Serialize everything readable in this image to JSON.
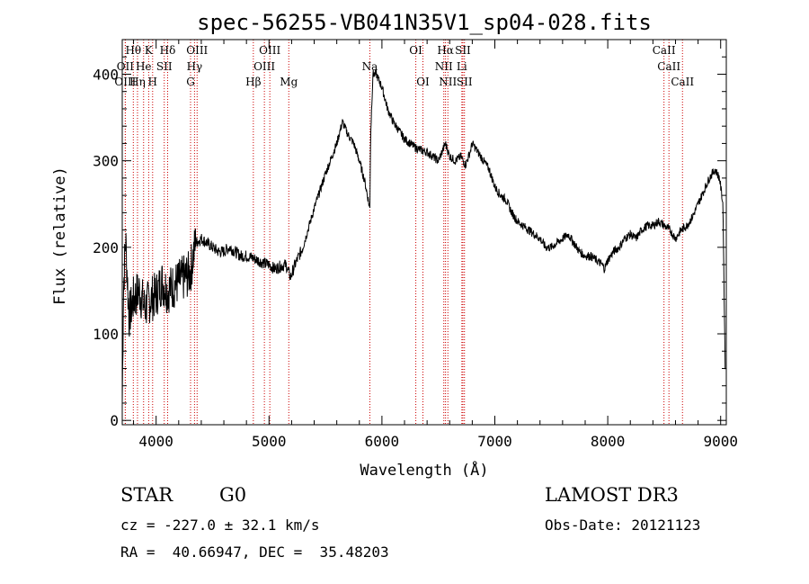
{
  "chart_data": {
    "type": "line",
    "title": "spec-56255-VB041N35V1_sp04-028.fits",
    "xlabel": "Wavelength (Å)",
    "ylabel": "Flux (relative)",
    "xlim": [
      3700,
      9050
    ],
    "ylim": [
      -5,
      440
    ],
    "xticks": [
      4000,
      5000,
      6000,
      7000,
      8000,
      9000
    ],
    "yticks": [
      0,
      100,
      200,
      300,
      400
    ],
    "series": [
      {
        "name": "spectrum",
        "x": [
          3700,
          3710,
          3730,
          3760,
          3800,
          3850,
          3900,
          3950,
          4000,
          4050,
          4100,
          4150,
          4200,
          4250,
          4300,
          4350,
          4400,
          4450,
          4500,
          4550,
          4600,
          4650,
          4700,
          4750,
          4800,
          4850,
          4900,
          4950,
          5000,
          5050,
          5100,
          5150,
          5190,
          5230,
          5300,
          5400,
          5500,
          5600,
          5650,
          5700,
          5750,
          5800,
          5850,
          5893,
          5900,
          5920,
          5950,
          6000,
          6050,
          6100,
          6150,
          6200,
          6250,
          6300,
          6350,
          6400,
          6450,
          6500,
          6563,
          6600,
          6650,
          6700,
          6740,
          6780,
          6800,
          6850,
          6900,
          6950,
          7000,
          7050,
          7100,
          7150,
          7200,
          7250,
          7300,
          7350,
          7400,
          7450,
          7500,
          7550,
          7600,
          7650,
          7700,
          7750,
          7800,
          7850,
          7900,
          7950,
          7970,
          8000,
          8050,
          8100,
          8150,
          8200,
          8250,
          8300,
          8350,
          8400,
          8450,
          8500,
          8550,
          8600,
          8650,
          8700,
          8750,
          8800,
          8850,
          8900,
          8950,
          8990,
          9020,
          9040
        ],
        "values": [
          20,
          150,
          210,
          120,
          140,
          150,
          130,
          140,
          145,
          160,
          150,
          155,
          160,
          165,
          170,
          205,
          210,
          205,
          200,
          195,
          195,
          200,
          195,
          190,
          190,
          188,
          185,
          182,
          180,
          175,
          178,
          180,
          165,
          180,
          200,
          245,
          285,
          320,
          345,
          330,
          320,
          300,
          275,
          245,
          330,
          400,
          400,
          385,
          360,
          345,
          335,
          325,
          320,
          315,
          312,
          310,
          305,
          300,
          320,
          305,
          300,
          305,
          295,
          310,
          320,
          310,
          300,
          290,
          270,
          260,
          255,
          240,
          230,
          225,
          220,
          215,
          210,
          200,
          200,
          205,
          210,
          215,
          205,
          195,
          190,
          190,
          185,
          180,
          175,
          185,
          195,
          200,
          210,
          215,
          210,
          220,
          225,
          225,
          230,
          225,
          220,
          210,
          220,
          225,
          235,
          250,
          265,
          280,
          290,
          280,
          250,
          60
        ]
      }
    ],
    "emission_lines": [
      {
        "label": "Hθ",
        "x": 3798,
        "row": 0
      },
      {
        "label": "K",
        "x": 3934,
        "row": 0
      },
      {
        "label": "Hδ",
        "x": 4102,
        "row": 0
      },
      {
        "label": "OIII",
        "x": 4363,
        "row": 0
      },
      {
        "label": "OIII",
        "x": 5007,
        "row": 0
      },
      {
        "label": "OI",
        "x": 6300,
        "row": 0
      },
      {
        "label": "Hα",
        "x": 6563,
        "row": 0
      },
      {
        "label": "SII",
        "x": 6717,
        "row": 0
      },
      {
        "label": "CaII",
        "x": 8498,
        "row": 0
      },
      {
        "label": "OII",
        "x": 3727,
        "row": 1
      },
      {
        "label": "He",
        "x": 3889,
        "row": 1
      },
      {
        "label": "SII",
        "x": 4072,
        "row": 1
      },
      {
        "label": "Hγ",
        "x": 4340,
        "row": 1
      },
      {
        "label": "OIII",
        "x": 4959,
        "row": 1
      },
      {
        "label": "Na",
        "x": 5893,
        "row": 1
      },
      {
        "label": "NII",
        "x": 6548,
        "row": 1
      },
      {
        "label": "Li",
        "x": 6708,
        "row": 1
      },
      {
        "label": "CaII",
        "x": 8542,
        "row": 1
      },
      {
        "label": "OIII",
        "x": 3727,
        "row": 2
      },
      {
        "label": "Hη",
        "x": 3835,
        "row": 2
      },
      {
        "label": "H",
        "x": 3969,
        "row": 2
      },
      {
        "label": "G",
        "x": 4305,
        "row": 2
      },
      {
        "label": "Hβ",
        "x": 4861,
        "row": 2
      },
      {
        "label": "Mg",
        "x": 5175,
        "row": 2
      },
      {
        "label": "OI",
        "x": 6363,
        "row": 2
      },
      {
        "label": "NII",
        "x": 6584,
        "row": 2
      },
      {
        "label": "SII",
        "x": 6731,
        "row": 2
      },
      {
        "label": "CaII",
        "x": 8662,
        "row": 2
      }
    ]
  },
  "info": {
    "class": "STAR",
    "subclass": "G0",
    "survey": "LAMOST DR3",
    "cz": "cz = -227.0 ± 32.1 km/s",
    "obs_date": "Obs-Date: 20121123",
    "radec": "RA =  40.66947, DEC =  35.48203"
  },
  "colors": {
    "line": "#000000",
    "marker": "#cc0000",
    "background": "#ffffff"
  }
}
